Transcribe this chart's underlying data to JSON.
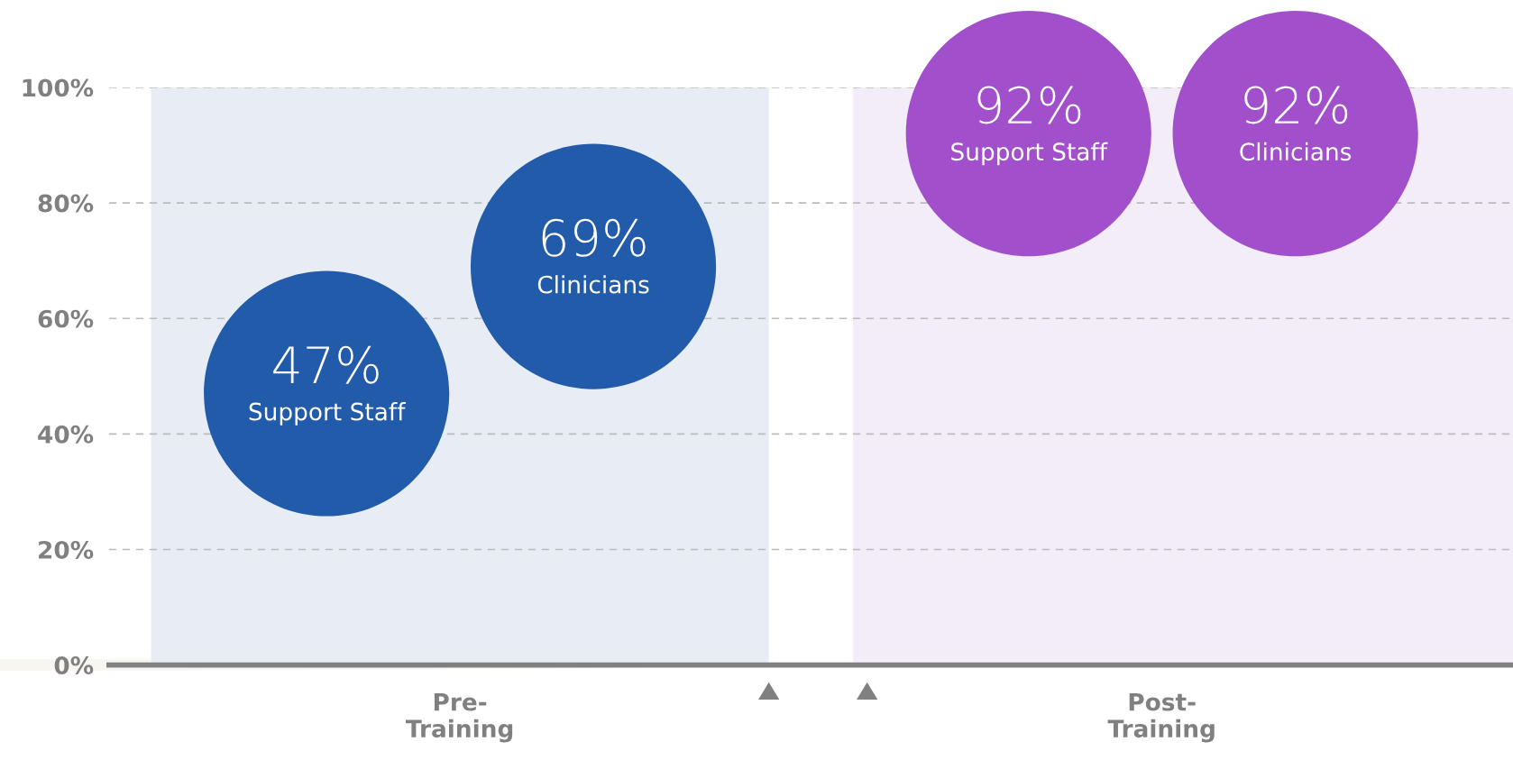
{
  "chart_data": {
    "type": "scatter",
    "categories": [
      "Pre-\nTraining",
      "Post-\nTraining"
    ],
    "series": [
      {
        "name": "Support Staff",
        "values": [
          47,
          92
        ],
        "colors": [
          "#225ba9",
          "#a24fcc"
        ],
        "value_labels": [
          "47%",
          "92%"
        ]
      },
      {
        "name": "Clinicians",
        "values": [
          69,
          92
        ],
        "colors": [
          "#225ba9",
          "#a24fcc"
        ],
        "value_labels": [
          "69%",
          "92%"
        ]
      }
    ],
    "bands": [
      {
        "axis": "x",
        "from": "Pre-\nTraining",
        "to": "Pre-\nTraining",
        "color": "#e8edf5"
      },
      {
        "axis": "x",
        "from": "Post-\nTraining",
        "to": "Post-\nTraining",
        "color": "#f3ecf9"
      }
    ],
    "ylim": [
      0,
      100
    ],
    "yticks": [
      {
        "value": 0,
        "label": "0%"
      },
      {
        "value": 20,
        "label": "20%"
      },
      {
        "value": 40,
        "label": "40%"
      },
      {
        "value": 60,
        "label": "60%"
      },
      {
        "value": 80,
        "label": "80%"
      },
      {
        "value": 100,
        "label": "100%"
      }
    ],
    "grid": "y",
    "marker": "circle"
  }
}
